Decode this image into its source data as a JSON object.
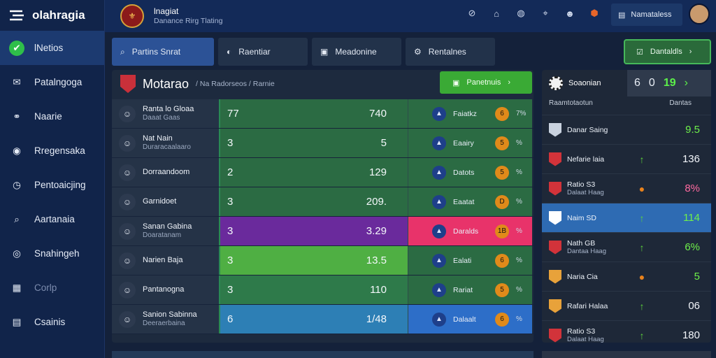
{
  "app": {
    "name": "olahragia"
  },
  "sidebar": {
    "items": [
      {
        "label": "lNetios",
        "icon": "shield-check-icon",
        "active": true
      },
      {
        "label": "Patalngoga",
        "icon": "mail-icon"
      },
      {
        "label": "Naarie",
        "icon": "share-icon"
      },
      {
        "label": "Rregensaka",
        "icon": "camera-icon"
      },
      {
        "label": "Pentoaicjing",
        "icon": "clock-icon"
      },
      {
        "label": "Aartanaia",
        "icon": "search-icon"
      },
      {
        "label": "Snahingeh",
        "icon": "compass-icon"
      },
      {
        "label": "Corlp",
        "icon": "grid-icon",
        "dim": true
      },
      {
        "label": "Csainis",
        "icon": "layout-icon"
      }
    ]
  },
  "header": {
    "club_name": "lnagiat",
    "club_sub": "Danance Rirg Tlating",
    "notifications_label": "Namataless"
  },
  "tabs": [
    {
      "label": "Partins Snrat",
      "icon": "search-icon",
      "active": true
    },
    {
      "label": "Raentiar",
      "icon": "settings-icon"
    },
    {
      "label": "Meadonine",
      "icon": "image-icon"
    },
    {
      "label": "Rentalnes",
      "icon": "gear-icon"
    }
  ],
  "details_button": {
    "label": "Dantaldls"
  },
  "panel": {
    "title": "Motarao",
    "subtitle": "/ Na Radorseos / Rarnie",
    "action_label": "Panetnuis",
    "rows": [
      {
        "name": "Ranta lo Gloaa",
        "sub": "Daaat Gaas",
        "a": "77",
        "b": "740",
        "opp": "Faiatkz",
        "badge": "6",
        "tag": "7%",
        "stat_bg": "#2b6b43",
        "opp_bg": "#2b6b43"
      },
      {
        "name": "Nat Nain",
        "sub": "Duraracaalaaro",
        "a": "3",
        "b": "5",
        "opp": "Eaairy",
        "badge": "5",
        "tag": "%",
        "stat_bg": "#2b6b43",
        "opp_bg": "#2b6b43"
      },
      {
        "name": "Dorraandoom",
        "sub": "",
        "a": "2",
        "b": "129",
        "opp": "Datots",
        "badge": "5",
        "tag": "%",
        "stat_bg": "#2b6b43",
        "opp_bg": "#2b6b43"
      },
      {
        "name": "Garnidoet",
        "sub": "",
        "a": "3",
        "b": "209.",
        "opp": "Eaatat",
        "badge": "D",
        "tag": "%",
        "stat_bg": "#2b6b43",
        "opp_bg": "#2b6b43"
      },
      {
        "name": "Sanan Gabina",
        "sub": "Doaratanam",
        "a": "3",
        "b": "3.29",
        "opp": "Daralds",
        "badge": "1B",
        "tag": "%",
        "stat_bg": "#6a2a9c",
        "opp_bg": "#e8336a"
      },
      {
        "name": "Narien Baja",
        "sub": "",
        "a": "3",
        "b": "13.5",
        "opp": "Ealati",
        "badge": "6",
        "tag": "%",
        "stat_bg": "#4faf43",
        "opp_bg": "#2b6b43"
      },
      {
        "name": "Pantanogna",
        "sub": "",
        "a": "3",
        "b": "110",
        "opp": "Rariat",
        "badge": "5",
        "tag": "%",
        "stat_bg": "#2e7a4a",
        "opp_bg": "#2b6b43"
      },
      {
        "name": "Sanion Sabinna",
        "sub": "Deeraerbaina",
        "a": "6",
        "b": "1/48",
        "opp": "Dalaalt",
        "badge": "6",
        "tag": "%",
        "stat_bg": "#2d7fb5",
        "opp_bg": "#2d6ec8"
      }
    ]
  },
  "right": {
    "title": "Soaonian",
    "score_icon": "6",
    "score_a": "0",
    "score_b": "19",
    "col_left": "Raamtotaotun",
    "col_right": "Dantas",
    "rows": [
      {
        "name": "Danar Saing",
        "sub": "",
        "val": "9.5",
        "val_color": "#6ef04a",
        "trend": "",
        "flag_color": "#c9d2df"
      },
      {
        "name": "Nefarie laia",
        "sub": "",
        "val": "136",
        "val_color": "#f2f5fa",
        "trend": "↑",
        "trend_color": "#5cd23c",
        "flag_color": "#d2333a"
      },
      {
        "name": "Ratio S3",
        "sub": "Dalaat Haag",
        "val": "8%",
        "val_color": "#ff6aa0",
        "trend": "●",
        "trend_color": "#e8821c",
        "flag_color": "#d2333a"
      },
      {
        "name": "Naim SD",
        "sub": "",
        "val": "114",
        "val_color": "#6ef04a",
        "trend": "↑",
        "trend_color": "#5cd23c",
        "flag_color": "#ffffff",
        "highlight": true
      },
      {
        "name": "Nath GB",
        "sub": "Dantaa Haag",
        "val": "6%",
        "val_color": "#6ef04a",
        "trend": "↑",
        "trend_color": "#5cd23c",
        "flag_color": "#d2333a"
      },
      {
        "name": "Naria Cia",
        "sub": "",
        "val": "5",
        "val_color": "#6ef04a",
        "trend": "●",
        "trend_color": "#e8821c",
        "flag_color": "#e8a23a"
      },
      {
        "name": "Rafari Halaa",
        "sub": "",
        "val": "06",
        "val_color": "#f2f5fa",
        "trend": "↑",
        "trend_color": "#5cd23c",
        "flag_color": "#e8a23a"
      },
      {
        "name": "Ratio S3",
        "sub": "Dalaat Haag",
        "val": "180",
        "val_color": "#f2f5fa",
        "trend": "↑",
        "trend_color": "#5cd23c",
        "flag_color": "#d2333a"
      }
    ]
  }
}
